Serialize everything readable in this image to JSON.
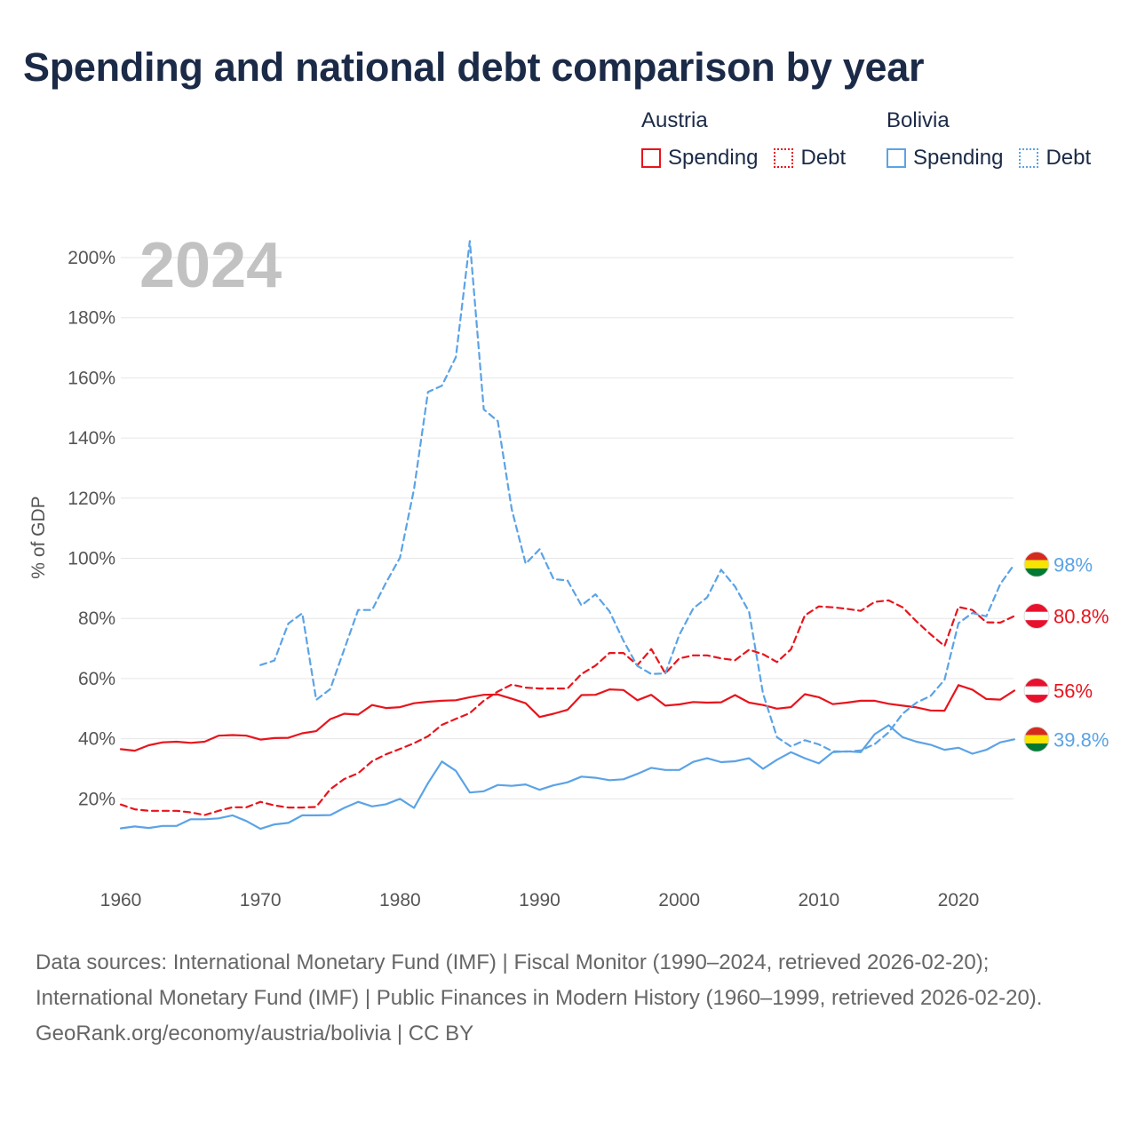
{
  "title": "Spending and national debt comparison by year",
  "legend": [
    {
      "country": "Austria",
      "items": [
        {
          "label": "Spending",
          "style": "solid",
          "color": "#e8141c"
        },
        {
          "label": "Debt",
          "style": "dotted",
          "color": "#e8141c"
        }
      ]
    },
    {
      "country": "Bolivia",
      "items": [
        {
          "label": "Spending",
          "style": "solid",
          "color": "#5ba3e6"
        },
        {
          "label": "Debt",
          "style": "dotted",
          "color": "#5ba3e6"
        }
      ]
    }
  ],
  "chart_data": {
    "type": "line",
    "year_label": "2024",
    "ylabel": "% of GDP",
    "xlim": [
      1960,
      2024
    ],
    "ylim": [
      0,
      205
    ],
    "x_ticks": [
      1960,
      1970,
      1980,
      1990,
      2000,
      2010,
      2020
    ],
    "x_tick_labels": [
      "1960",
      "1970",
      "1980",
      "1990",
      "2000",
      "2010",
      "2020"
    ],
    "y_ticks": [
      20,
      40,
      60,
      80,
      100,
      120,
      140,
      160,
      180,
      200
    ],
    "y_tick_labels": [
      "20%",
      "40%",
      "60%",
      "80%",
      "100%",
      "120%",
      "140%",
      "160%",
      "180%",
      "200%"
    ],
    "series": [
      {
        "name": "Austria Spending",
        "country": "Austria",
        "metric": "Spending",
        "color": "#e8141c",
        "dash": "solid",
        "start": 1960,
        "end_label": "56%",
        "values": [
          36.5,
          36,
          37.8,
          38.8,
          39,
          38.6,
          39,
          41,
          41.2,
          41,
          39.7,
          40.2,
          40.3,
          41.8,
          42.5,
          46.5,
          48.3,
          48,
          51.2,
          50.2,
          50.5,
          51.8,
          52.3,
          52.6,
          52.8,
          53.8,
          54.6,
          54.7,
          53.3,
          51.8,
          47.2,
          48.3,
          49.6,
          54.5,
          54.6,
          56.4,
          56.2,
          52.8,
          54.6,
          51,
          51.4,
          52.2,
          52,
          52.1,
          54.5,
          52,
          51.2,
          50,
          50.5,
          54.8,
          53.8,
          51.5,
          52,
          52.6,
          52.6,
          51.6,
          51,
          50.4,
          49.4,
          49.3,
          57.8,
          56.3,
          53.2,
          53,
          56
        ]
      },
      {
        "name": "Austria Debt",
        "country": "Austria",
        "metric": "Debt",
        "color": "#e8141c",
        "dash": "dashed",
        "start": 1960,
        "end_label": "80.8%",
        "values": [
          18.1,
          16.5,
          16,
          16,
          16,
          15.5,
          14.6,
          16,
          17.2,
          17.2,
          19,
          17.8,
          17.1,
          17.1,
          17.3,
          23.2,
          26.6,
          28.5,
          32.5,
          34.8,
          36.6,
          38.5,
          40.8,
          44.6,
          46.6,
          48.5,
          52.6,
          55.7,
          58,
          57,
          56.7,
          56.7,
          56.7,
          61.5,
          64.3,
          68.5,
          68.5,
          64.5,
          69.8,
          61.7,
          66.7,
          67.7,
          67.7,
          66.7,
          66.1,
          69.6,
          68.1,
          65.5,
          69.7,
          81,
          84,
          83.7,
          83.2,
          82.5,
          85.5,
          86,
          83.7,
          79,
          74.7,
          70.8,
          83.8,
          82.8,
          78.7,
          78.6,
          80.8
        ]
      },
      {
        "name": "Bolivia Spending",
        "country": "Bolivia",
        "metric": "Spending",
        "color": "#5ba3e6",
        "dash": "solid",
        "start": 1960,
        "end_label": "39.8%",
        "values": [
          10.2,
          10.8,
          10.3,
          11,
          11,
          13.2,
          13.2,
          13.5,
          14.5,
          12.6,
          10,
          11.5,
          12,
          14.5,
          14.5,
          14.6,
          17,
          19,
          17.5,
          18.2,
          20,
          17,
          25.2,
          32.4,
          29.3,
          22.1,
          22.5,
          24.6,
          24.3,
          24.8,
          23,
          24.5,
          25.5,
          27.4,
          27,
          26.2,
          26.5,
          28.3,
          30.3,
          29.6,
          29.6,
          32.3,
          33.5,
          32.2,
          32.5,
          33.5,
          30,
          33,
          35.5,
          33.5,
          31.8,
          35.5,
          35.8,
          35.5,
          41.5,
          44.5,
          40.5,
          39,
          38,
          36.3,
          37,
          35,
          36.3,
          38.8,
          39.8
        ]
      },
      {
        "name": "Bolivia Debt",
        "country": "Bolivia",
        "metric": "Debt",
        "color": "#5ba3e6",
        "dash": "dashed",
        "start": 1970,
        "end_label": "98%",
        "values": [
          64.5,
          66,
          78.3,
          81.7,
          52.9,
          56.5,
          69.7,
          82.8,
          82.8,
          91.9,
          100.2,
          123,
          155.3,
          157.4,
          166.9,
          205.5,
          149.5,
          145.6,
          116.3,
          98.2,
          103,
          93.1,
          92.6,
          84.3,
          88,
          82.4,
          72.6,
          64.2,
          61.5,
          61.7,
          74.5,
          83.3,
          87,
          96.2,
          90.6,
          82.2,
          55,
          40.5,
          37.4,
          39.5,
          38.1,
          35.8,
          35.7,
          36.1,
          38.2,
          42.1,
          48.3,
          52,
          54.2,
          59.6,
          78.4,
          81.8,
          80.7,
          91.5,
          98
        ]
      }
    ]
  },
  "footer": {
    "sources": "Data sources: International Monetary Fund (IMF) | Fiscal Monitor (1990–2024, retrieved 2026-02-20); International Monetary Fund (IMF) | Public Finances in Modern History (1960–1999, retrieved 2026-02-20).",
    "credit": "GeoRank.org/economy/austria/bolivia | CC BY"
  }
}
